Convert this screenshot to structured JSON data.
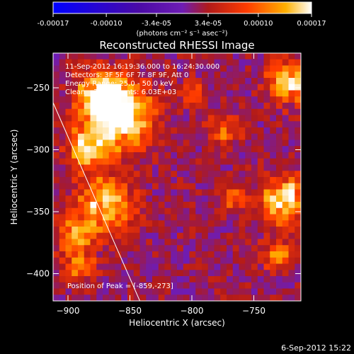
{
  "window": {
    "title": "Reconstructed RHESSI Image"
  },
  "colorbar": {
    "ticks": [
      "-0.00017",
      "-0.00010",
      "-3.4e-05",
      "3.4e-05",
      "0.00010",
      "0.00017"
    ],
    "tick_values": [
      -0.00017,
      -0.0001,
      -3.4e-05,
      3.4e-05,
      0.0001,
      0.00017
    ],
    "range": [
      -0.00017,
      0.00017
    ],
    "units_label": "(photons cm⁻² s⁻¹ asec⁻²)",
    "colors": [
      "#0000ff",
      "#4a0aa6",
      "#6e1cb4",
      "#b01a1a",
      "#ff3c00",
      "#ffb000",
      "#ffffff"
    ]
  },
  "annotations": {
    "time_line": "11-Sep-2012 16:19:36.000 to 16:24:30.000",
    "detectors_line": "Detectors: 3F 5F 6F 7F 8F 9F, Att 0",
    "energy_line": "Energy Range: 25.0 - 50.0 keV",
    "clean_line": "Clean    Total counts: 6.03E+03",
    "peak_label": "Position of Peak = [-859,-273]"
  },
  "footer": {
    "timestamp": "6-Sep-2012 15:22"
  },
  "chart_data": {
    "type": "heatmap",
    "title": "Reconstructed RHESSI Image",
    "xlabel": "Heliocentric X (arcsec)",
    "ylabel": "Heliocentric Y (arcsec)",
    "xlim": [
      -912,
      -712
    ],
    "ylim": [
      -422,
      -222
    ],
    "x_ticks": [
      -900,
      -850,
      -800,
      -750
    ],
    "y_ticks": [
      -250,
      -300,
      -350,
      -400
    ],
    "x_tick_labels": [
      "−900",
      "−850",
      "−800",
      "−750"
    ],
    "y_tick_labels": [
      "−250",
      "−300",
      "−350",
      "−400"
    ],
    "peak_position": [
      -859,
      -273
    ],
    "limb_line": [
      [
        -912,
        -262
      ],
      [
        -842,
        -422
      ]
    ],
    "hot_spots": [
      {
        "x": -859,
        "y": -273,
        "r": 26,
        "amp": 1.0
      },
      {
        "x": -872,
        "y": -256,
        "r": 18,
        "amp": 0.8
      },
      {
        "x": -885,
        "y": -300,
        "r": 16,
        "amp": 0.7
      },
      {
        "x": -870,
        "y": -345,
        "r": 22,
        "amp": 0.75
      },
      {
        "x": -895,
        "y": -370,
        "r": 14,
        "amp": 0.6
      },
      {
        "x": -890,
        "y": -395,
        "r": 12,
        "amp": 0.5
      },
      {
        "x": -722,
        "y": -245,
        "r": 16,
        "amp": 0.8
      },
      {
        "x": -725,
        "y": -340,
        "r": 18,
        "amp": 0.85
      },
      {
        "x": -730,
        "y": -385,
        "r": 12,
        "amp": 0.55
      },
      {
        "x": -775,
        "y": -285,
        "r": 12,
        "amp": 0.5
      },
      {
        "x": -765,
        "y": -340,
        "r": 10,
        "amp": 0.45
      },
      {
        "x": -800,
        "y": -255,
        "r": 10,
        "amp": 0.45
      }
    ]
  }
}
